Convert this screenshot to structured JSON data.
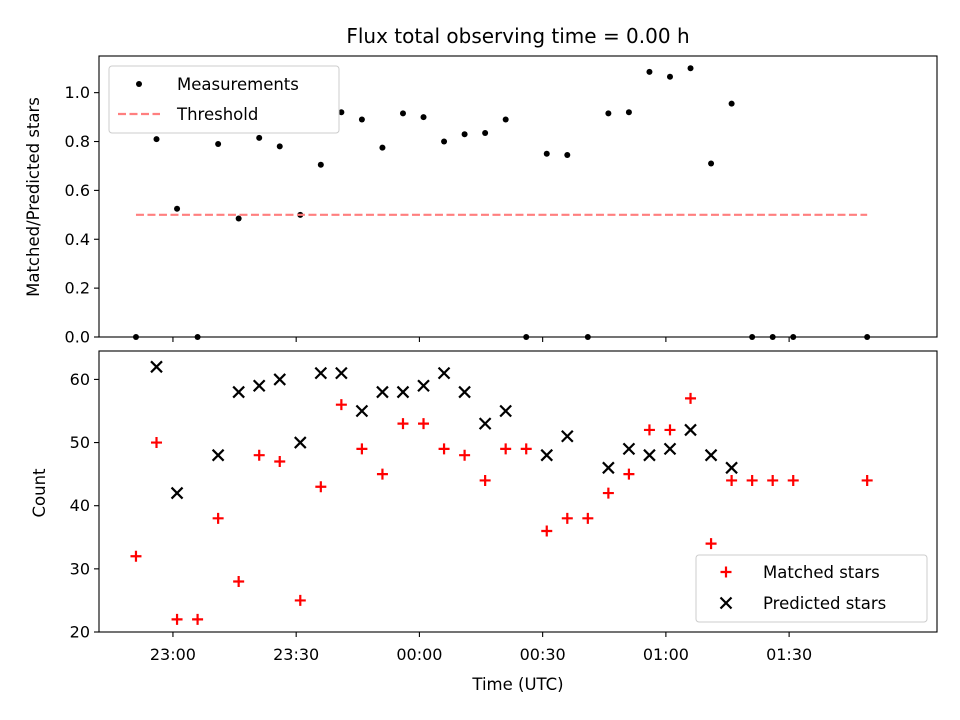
{
  "chart_data": [
    {
      "type": "scatter",
      "title": "Flux total observing time = 0.00 h",
      "xlabel": "",
      "ylabel": "Matched/Predicted stars",
      "xlim": [
        "22:42",
        "02:06"
      ],
      "ylim": [
        0.0,
        1.15
      ],
      "yticks": [
        0.0,
        0.2,
        0.4,
        0.6,
        0.8,
        1.0
      ],
      "ytick_labels": [
        "0.0",
        "0.2",
        "0.4",
        "0.6",
        "0.8",
        "1.0"
      ],
      "legend_position": "top-left",
      "series": [
        {
          "name": "Measurements",
          "marker": "dot",
          "color": "#000000",
          "points": [
            [
              "22:51",
              0.0
            ],
            [
              "22:56",
              0.81
            ],
            [
              "23:01",
              0.525
            ],
            [
              "23:06",
              0.0
            ],
            [
              "23:11",
              0.79
            ],
            [
              "23:16",
              0.485
            ],
            [
              "23:21",
              0.815
            ],
            [
              "23:26",
              0.78
            ],
            [
              "23:31",
              0.5
            ],
            [
              "23:36",
              0.705
            ],
            [
              "23:41",
              0.92
            ],
            [
              "23:46",
              0.89
            ],
            [
              "23:51",
              0.775
            ],
            [
              "23:56",
              0.915
            ],
            [
              "00:01",
              0.9
            ],
            [
              "00:06",
              0.8
            ],
            [
              "00:11",
              0.83
            ],
            [
              "00:16",
              0.835
            ],
            [
              "00:21",
              0.89
            ],
            [
              "00:26",
              0.0
            ],
            [
              "00:31",
              0.75
            ],
            [
              "00:36",
              0.745
            ],
            [
              "00:41",
              0.0
            ],
            [
              "00:46",
              0.915
            ],
            [
              "00:51",
              0.92
            ],
            [
              "00:56",
              1.085
            ],
            [
              "01:01",
              1.065
            ],
            [
              "01:06",
              1.1
            ],
            [
              "01:11",
              0.71
            ],
            [
              "01:16",
              0.955
            ],
            [
              "01:21",
              0.0
            ],
            [
              "01:26",
              0.0
            ],
            [
              "01:31",
              0.0
            ],
            [
              "01:49",
              0.0
            ]
          ]
        },
        {
          "name": "Threshold",
          "marker": "dashed-line",
          "color": "#ff7f7f",
          "points": [
            [
              "22:51",
              0.5
            ],
            [
              "01:49",
              0.5
            ]
          ]
        }
      ]
    },
    {
      "type": "scatter",
      "title": "",
      "xlabel": "Time (UTC)",
      "ylabel": "Count",
      "xlim": [
        "22:42",
        "02:06"
      ],
      "ylim": [
        20,
        64.5
      ],
      "xticks": [
        "23:00",
        "23:30",
        "00:00",
        "00:30",
        "01:00",
        "01:30"
      ],
      "yticks": [
        20,
        30,
        40,
        50,
        60
      ],
      "ytick_labels": [
        "20",
        "30",
        "40",
        "50",
        "60"
      ],
      "legend_position": "bottom-right",
      "series": [
        {
          "name": "Matched stars",
          "marker": "plus",
          "color": "#ff0000",
          "points": [
            [
              "22:51",
              32
            ],
            [
              "22:56",
              50
            ],
            [
              "23:01",
              22
            ],
            [
              "23:06",
              22
            ],
            [
              "23:11",
              38
            ],
            [
              "23:16",
              28
            ],
            [
              "23:21",
              48
            ],
            [
              "23:26",
              47
            ],
            [
              "23:31",
              25
            ],
            [
              "23:36",
              43
            ],
            [
              "23:41",
              56
            ],
            [
              "23:46",
              49
            ],
            [
              "23:51",
              45
            ],
            [
              "23:56",
              53
            ],
            [
              "00:01",
              53
            ],
            [
              "00:06",
              49
            ],
            [
              "00:11",
              48
            ],
            [
              "00:16",
              44
            ],
            [
              "00:21",
              49
            ],
            [
              "00:26",
              49
            ],
            [
              "00:31",
              36
            ],
            [
              "00:36",
              38
            ],
            [
              "00:41",
              38
            ],
            [
              "00:46",
              42
            ],
            [
              "00:51",
              45
            ],
            [
              "00:56",
              52
            ],
            [
              "01:01",
              52
            ],
            [
              "01:06",
              57
            ],
            [
              "01:11",
              34
            ],
            [
              "01:16",
              44
            ],
            [
              "01:21",
              44
            ],
            [
              "01:26",
              44
            ],
            [
              "01:31",
              44
            ],
            [
              "01:49",
              44
            ]
          ]
        },
        {
          "name": "Predicted stars",
          "marker": "x",
          "color": "#000000",
          "points": [
            [
              "22:56",
              62
            ],
            [
              "23:01",
              42
            ],
            [
              "23:11",
              48
            ],
            [
              "23:16",
              58
            ],
            [
              "23:21",
              59
            ],
            [
              "23:26",
              60
            ],
            [
              "23:31",
              50
            ],
            [
              "23:36",
              61
            ],
            [
              "23:41",
              61
            ],
            [
              "23:46",
              55
            ],
            [
              "23:51",
              58
            ],
            [
              "23:56",
              58
            ],
            [
              "00:01",
              59
            ],
            [
              "00:06",
              61
            ],
            [
              "00:11",
              58
            ],
            [
              "00:16",
              53
            ],
            [
              "00:21",
              55
            ],
            [
              "00:31",
              48
            ],
            [
              "00:36",
              51
            ],
            [
              "00:46",
              46
            ],
            [
              "00:51",
              49
            ],
            [
              "00:56",
              48
            ],
            [
              "01:01",
              49
            ],
            [
              "01:06",
              52
            ],
            [
              "01:11",
              48
            ],
            [
              "01:16",
              46
            ]
          ]
        }
      ]
    }
  ]
}
